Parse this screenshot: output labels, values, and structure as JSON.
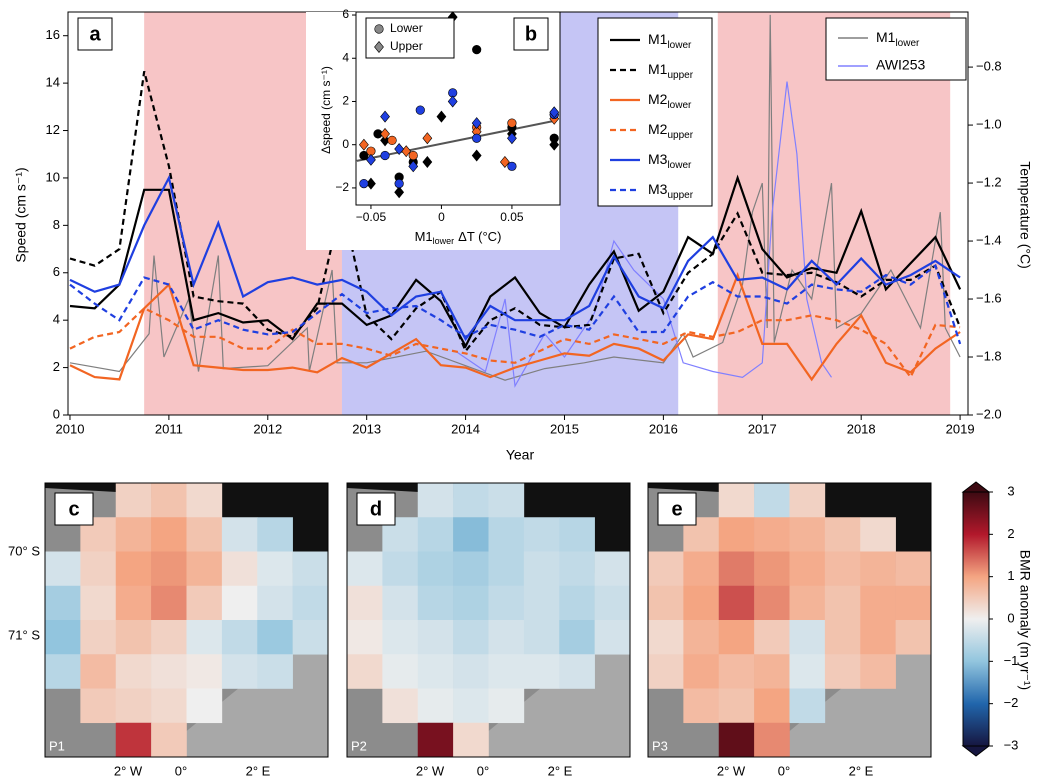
{
  "chart_data": [
    {
      "type": "line",
      "panel_label": "a",
      "xlabel": "Year",
      "ylabel": "Speed (cm s⁻¹)",
      "y2label": "Temperature (°C)",
      "xlim": [
        2009.98,
        2019.08
      ],
      "xticks": [
        2010,
        2011,
        2012,
        2013,
        2014,
        2015,
        2016,
        2017,
        2018,
        2019
      ],
      "ylim": [
        0,
        17
      ],
      "yticks": [
        0,
        2,
        4,
        6,
        8,
        10,
        12,
        14,
        16
      ],
      "y2lim": [
        -2.0,
        -0.61
      ],
      "y2ticks": [
        {
          "value": -2.0,
          "label": "−2.0"
        },
        {
          "value": -1.8,
          "label": "−1.8"
        },
        {
          "value": -1.6,
          "label": "−1.6"
        },
        {
          "value": -1.4,
          "label": "−1.4"
        },
        {
          "value": -1.2,
          "label": "−1.2"
        },
        {
          "value": -1.0,
          "label": "−1.0"
        },
        {
          "value": -0.8,
          "label": "−0.8"
        }
      ],
      "shaded_periods": [
        {
          "start": 2010.75,
          "end": 2012.75,
          "color": "#f7c5c6"
        },
        {
          "start": 2012.75,
          "end": 2016.15,
          "color": "#c5c5f5"
        },
        {
          "start": 2016.55,
          "end": 2018.9,
          "color": "#f7c5c6"
        }
      ],
      "x": [
        2010,
        2010.25,
        2010.5,
        2010.75,
        2011,
        2011.25,
        2011.5,
        2011.75,
        2012,
        2012.25,
        2012.5,
        2012.75,
        2013,
        2013.25,
        2013.5,
        2013.75,
        2014,
        2014.25,
        2014.5,
        2014.75,
        2015,
        2015.25,
        2015.5,
        2015.75,
        2016,
        2016.25,
        2016.5,
        2016.75,
        2017,
        2017.25,
        2017.5,
        2017.75,
        2018,
        2018.25,
        2018.5,
        2018.75,
        2019
      ],
      "series": [
        {
          "name": "M1",
          "sub": "lower",
          "color": "#000000",
          "dash": false,
          "values": [
            4.6,
            4.5,
            5.5,
            9.5,
            9.5,
            4.0,
            4.3,
            3.9,
            4.0,
            3.2,
            4.7,
            4.7,
            3.8,
            4.2,
            5.7,
            4.8,
            2.9,
            5.0,
            5.8,
            4.3,
            3.7,
            5.5,
            6.9,
            4.4,
            5.2,
            7.5,
            6.8,
            10.0,
            7.0,
            5.8,
            6.2,
            6.0,
            8.6,
            5.3,
            6.4,
            7.5,
            5.3
          ]
        },
        {
          "name": "M1",
          "sub": "upper",
          "color": "#000000",
          "dash": true,
          "values": [
            6.6,
            6.3,
            7.0,
            14.5,
            10.5,
            5.0,
            4.8,
            4.7,
            3.6,
            3.3,
            4.5,
            9.0,
            4.2,
            3.2,
            4.5,
            5.2,
            2.7,
            4.0,
            4.5,
            3.8,
            3.7,
            3.8,
            6.6,
            6.8,
            4.3,
            6.0,
            6.8,
            8.5,
            6.0,
            5.9,
            6.0,
            5.6,
            5.0,
            5.7,
            5.7,
            6.3,
            3.7
          ]
        },
        {
          "name": "M2",
          "sub": "lower",
          "color": "#f26522",
          "dash": false,
          "values": [
            2.1,
            1.6,
            1.5,
            4.5,
            5.5,
            2.1,
            2.0,
            1.9,
            1.9,
            2.0,
            1.8,
            2.4,
            2.0,
            2.6,
            3.2,
            2.1,
            2.0,
            1.6,
            2.0,
            2.3,
            2.6,
            2.5,
            3.0,
            2.8,
            2.3,
            3.4,
            3.2,
            5.9,
            3.0,
            3.0,
            1.5,
            3.0,
            4.2,
            2.2,
            1.8,
            2.8,
            3.5
          ]
        },
        {
          "name": "M2",
          "sub": "upper",
          "color": "#f26522",
          "dash": true,
          "values": [
            2.8,
            3.3,
            3.5,
            4.5,
            4.0,
            3.3,
            3.3,
            2.8,
            2.8,
            3.6,
            3.0,
            3.0,
            2.8,
            2.5,
            3.0,
            2.8,
            2.6,
            2.3,
            2.2,
            2.7,
            3.2,
            3.0,
            3.4,
            3.2,
            3.0,
            3.5,
            3.3,
            3.5,
            4.0,
            4.0,
            4.2,
            4.0,
            3.6,
            3.0,
            1.6,
            3.8,
            3.7
          ]
        },
        {
          "name": "M3",
          "sub": "lower",
          "color": "#1f3fe0",
          "dash": false,
          "values": [
            5.7,
            5.2,
            5.5,
            8.0,
            10.0,
            5.5,
            8.1,
            5.0,
            5.6,
            5.8,
            5.5,
            5.7,
            5.2,
            4.2,
            5.0,
            5.2,
            3.2,
            4.6,
            4.0,
            4.0,
            4.0,
            4.6,
            6.7,
            5.0,
            4.5,
            6.5,
            7.5,
            5.7,
            5.8,
            5.3,
            6.5,
            5.5,
            6.6,
            5.5,
            5.9,
            6.5,
            5.8
          ]
        },
        {
          "name": "M3",
          "sub": "upper",
          "color": "#1f3fe0",
          "dash": true,
          "values": [
            5.5,
            4.7,
            4.0,
            5.8,
            5.5,
            3.6,
            4.0,
            3.6,
            3.4,
            3.5,
            4.3,
            5.1,
            4.3,
            4.5,
            4.6,
            4.0,
            3.3,
            3.8,
            3.6,
            3.3,
            3.8,
            3.6,
            5.0,
            3.5,
            3.5,
            5.0,
            5.6,
            5.0,
            5.0,
            4.7,
            5.5,
            5.3,
            5.2,
            5.9,
            5.5,
            6.3,
            3.0
          ]
        }
      ],
      "temperature_series": [
        {
          "name": "M1",
          "sub": "lower",
          "color": "#7f7f7f",
          "axis": "y2",
          "x": [
            2010,
            2010.5,
            2010.8,
            2010.85,
            2010.95,
            2011.2,
            2011.3,
            2011.5,
            2011.55,
            2012,
            2012.4,
            2012.42,
            2012.65,
            2012.7,
            2013,
            2013.6,
            2014,
            2014.4,
            2014.8,
            2015.2,
            2015.5,
            2016,
            2016.2,
            2016.3,
            2016.6,
            2016.8,
            2016.9,
            2017,
            2017.05,
            2017.08,
            2017.12,
            2017.3,
            2017.5,
            2017.7,
            2017.75,
            2018,
            2018.3,
            2018.6,
            2018.8,
            2018.85,
            2019
          ],
          "values": [
            -1.82,
            -1.85,
            -1.72,
            -1.45,
            -1.8,
            -1.6,
            -1.85,
            -1.45,
            -1.84,
            -1.83,
            -1.7,
            -1.85,
            -1.5,
            -1.82,
            -1.82,
            -1.78,
            -1.83,
            -1.88,
            -1.84,
            -1.82,
            -1.8,
            -1.82,
            -1.72,
            -1.8,
            -1.75,
            -1.55,
            -1.3,
            -1.2,
            -1.7,
            -0.62,
            -1.75,
            -1.5,
            -1.6,
            -1.2,
            -1.7,
            -1.65,
            -1.5,
            -1.7,
            -1.3,
            -1.7,
            -1.8
          ]
        },
        {
          "name": "AWI253",
          "color": "#8080ff",
          "axis": "y2",
          "x": [
            2013.9,
            2014.2,
            2014.4,
            2014.5,
            2014.8,
            2015,
            2015.3,
            2015.5,
            2015.7,
            2016,
            2016.2,
            2016.5,
            2016.8,
            2017,
            2017.1,
            2017.2,
            2017.25,
            2017.35,
            2017.45,
            2017.6,
            2017.7
          ],
          "values": [
            -1.78,
            -1.85,
            -1.6,
            -1.9,
            -1.72,
            -1.8,
            -1.65,
            -1.4,
            -1.5,
            -1.6,
            -1.82,
            -1.85,
            -1.87,
            -1.82,
            -1.3,
            -1.0,
            -0.85,
            -1.1,
            -1.6,
            -1.82,
            -1.87
          ]
        }
      ]
    },
    {
      "type": "scatter",
      "panel_label": "b",
      "ylabel": "Δspeed (cm s⁻¹)",
      "xlabel": {
        "main": "M1",
        "sub": "lower",
        "rest": "ΔT (°C)"
      },
      "xlim": [
        -0.0606,
        0.0841
      ],
      "xticks": [
        {
          "value": -0.05,
          "label": "−0.05"
        },
        0,
        0.05
      ],
      "ylim": [
        -2.79,
        6.14
      ],
      "yticks": [
        {
          "value": -2,
          "label": "−2"
        },
        0,
        2,
        4,
        6
      ],
      "markers": [
        {
          "name": "Lower",
          "shape": "circle"
        },
        {
          "name": "Upper",
          "shape": "diamond"
        }
      ],
      "series": [
        {
          "color": "#000000",
          "marker": 0,
          "x": [
            -0.055,
            -0.045,
            -0.03,
            -0.02,
            0.025,
            0.05,
            0.08
          ],
          "values": [
            -0.5,
            0.5,
            -1.5,
            -0.8,
            4.4,
            0.8,
            0.3
          ]
        },
        {
          "color": "#000000",
          "marker": 1,
          "x": [
            -0.05,
            -0.04,
            -0.03,
            -0.01,
            0.0,
            0.008,
            0.025,
            0.05,
            0.08
          ],
          "values": [
            -1.8,
            0.2,
            -2.2,
            -0.8,
            1.3,
            5.9,
            -0.5,
            0.5,
            0.0
          ]
        },
        {
          "color": "#f26522",
          "marker": 0,
          "x": [
            -0.05,
            -0.035,
            -0.02,
            0.025,
            0.05,
            0.08
          ],
          "values": [
            -0.3,
            0.2,
            -0.5,
            0.8,
            1.0,
            1.4
          ]
        },
        {
          "color": "#f26522",
          "marker": 1,
          "x": [
            -0.055,
            -0.04,
            -0.025,
            -0.01,
            0.025,
            0.045,
            0.08
          ],
          "values": [
            0.0,
            0.5,
            -0.3,
            0.3,
            0.6,
            -0.8,
            1.2
          ]
        },
        {
          "color": "#1f3fe0",
          "marker": 0,
          "x": [
            -0.055,
            -0.04,
            -0.03,
            -0.015,
            0.008,
            0.025,
            0.05,
            0.08
          ],
          "values": [
            -1.8,
            -0.5,
            -1.8,
            1.6,
            2.4,
            0.3,
            -1.0,
            1.4
          ]
        },
        {
          "color": "#1f3fe0",
          "marker": 1,
          "x": [
            -0.05,
            -0.04,
            -0.03,
            -0.02,
            0.008,
            0.025,
            0.05,
            0.08
          ],
          "values": [
            -0.7,
            1.3,
            -0.2,
            -1.0,
            2.0,
            1.0,
            0.3,
            1.5
          ]
        }
      ],
      "fit_line": {
        "color": "#555555",
        "x": [
          -0.06,
          0.08
        ],
        "values": [
          -0.75,
          1.1
        ]
      }
    },
    {
      "type": "heatmap",
      "lat_labels": [
        "70° S",
        "71° S"
      ],
      "lon_labels": [
        "2° W",
        "0°",
        "2° E"
      ],
      "maps": [
        {
          "panel_label": "c",
          "period": "P1",
          "values": [
            [
              null,
              null,
              0.4,
              0.6,
              0.3,
              null,
              null,
              null
            ],
            [
              null,
              0.5,
              0.8,
              1.0,
              0.6,
              -0.3,
              -0.6,
              null
            ],
            [
              -0.3,
              0.4,
              1.0,
              1.1,
              0.8,
              0.2,
              -0.2,
              -0.4
            ],
            [
              -0.8,
              0.3,
              0.9,
              1.2,
              0.5,
              0.0,
              -0.3,
              -0.5
            ],
            [
              -1.0,
              0.4,
              0.6,
              0.4,
              -0.2,
              -0.5,
              -0.9,
              -0.4
            ],
            [
              -0.6,
              0.7,
              0.3,
              0.2,
              0.1,
              -0.3,
              -0.4,
              null
            ],
            [
              null,
              0.5,
              0.4,
              0.3,
              0.0,
              null,
              null,
              null
            ],
            [
              null,
              null,
              1.8,
              0.5,
              null,
              null,
              null,
              null
            ]
          ]
        },
        {
          "panel_label": "d",
          "period": "P2",
          "values": [
            [
              null,
              null,
              -0.3,
              -0.5,
              -0.4,
              null,
              null,
              null
            ],
            [
              null,
              -0.4,
              -0.6,
              -1.1,
              -0.6,
              -0.5,
              -0.6,
              null
            ],
            [
              -0.2,
              -0.5,
              -0.7,
              -0.8,
              -0.6,
              -0.4,
              -0.5,
              -0.3
            ],
            [
              0.2,
              -0.3,
              -0.6,
              -0.7,
              -0.5,
              -0.4,
              -0.6,
              -0.4
            ],
            [
              0.1,
              -0.2,
              -0.3,
              -0.5,
              -0.3,
              -0.4,
              -0.8,
              -0.3
            ],
            [
              0.3,
              -0.1,
              -0.2,
              -0.3,
              -0.2,
              -0.2,
              -0.3,
              null
            ],
            [
              null,
              0.2,
              -0.1,
              -0.2,
              -0.1,
              null,
              null,
              null
            ],
            [
              null,
              null,
              2.5,
              0.3,
              null,
              null,
              null,
              null
            ]
          ]
        },
        {
          "panel_label": "e",
          "period": "P3",
          "values": [
            [
              null,
              null,
              0.3,
              -0.5,
              0.4,
              null,
              null,
              null
            ],
            [
              null,
              0.6,
              1.0,
              0.9,
              0.8,
              0.6,
              0.3,
              null
            ],
            [
              0.5,
              0.9,
              1.3,
              1.1,
              0.9,
              0.7,
              0.8,
              0.7
            ],
            [
              0.6,
              1.0,
              1.6,
              1.2,
              0.8,
              0.6,
              0.9,
              0.9
            ],
            [
              0.3,
              0.8,
              1.0,
              0.5,
              -0.3,
              0.6,
              0.9,
              0.6
            ],
            [
              0.4,
              0.9,
              0.7,
              0.8,
              -0.2,
              0.5,
              0.7,
              null
            ],
            [
              null,
              0.7,
              0.6,
              1.0,
              -0.5,
              null,
              null,
              null
            ],
            [
              null,
              null,
              2.7,
              1.2,
              null,
              null,
              null,
              null
            ]
          ]
        }
      ],
      "colorbar": {
        "label": "BMR anomaly (m yr⁻¹)",
        "lim": [
          -3,
          3
        ],
        "ticks": [
          3,
          2,
          1,
          0,
          {
            "value": -1,
            "label": "−1"
          },
          {
            "value": -2,
            "label": "−2"
          },
          {
            "value": -3,
            "label": "−3"
          }
        ],
        "colors": [
          "#161640",
          "#2166ac",
          "#92c5de",
          "#efefef",
          "#f4a582",
          "#b2182b",
          "#3d0a12"
        ]
      }
    }
  ]
}
